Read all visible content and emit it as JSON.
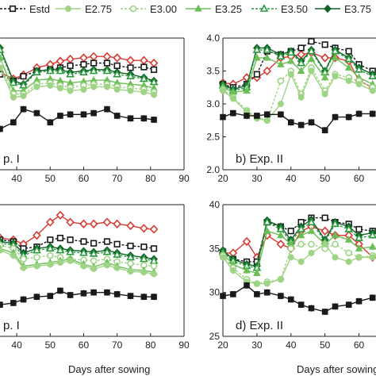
{
  "colors": {
    "Estd": "#1a1a1a",
    "E2.75": "#9fd486",
    "E3.00": "#9fd486",
    "E3.25": "#6cbf57",
    "E3.50": "#2a9a3f",
    "E3.75": "#12612a",
    "red": "#d63a32",
    "axis": "#222222"
  },
  "legend": {
    "items": [
      {
        "label": "Estd",
        "marker": "square-open",
        "color": "#1a1a1a",
        "dashed": true
      },
      {
        "label": "E2.75",
        "marker": "circle",
        "color": "#9fd486",
        "dashed": false
      },
      {
        "label": "E3.00",
        "marker": "circle-open",
        "color": "#9fd486",
        "dashed": true
      },
      {
        "label": "E3.25",
        "marker": "triangle",
        "color": "#6cbf57",
        "dashed": false
      },
      {
        "label": "E3.50",
        "marker": "triangle-open",
        "color": "#2a9a3f",
        "dashed": true
      },
      {
        "label": "E3.75",
        "marker": "diamond",
        "color": "#12612a",
        "dashed": false
      }
    ]
  },
  "xlabel_bottom": "Days after sowing",
  "chart_data": [
    {
      "id": "a",
      "type": "line",
      "label": "p. I",
      "xlim": [
        35,
        90
      ],
      "ylim": [
        2.0,
        4.0
      ],
      "xticks": [
        40,
        50,
        60,
        70,
        80,
        90
      ],
      "xtick_labels": [
        "40",
        "50",
        "60",
        "70",
        "80",
        "90"
      ],
      "yticks": [],
      "ytick_labels": [],
      "x": [
        35,
        39,
        42,
        46,
        50,
        53,
        56,
        60,
        63,
        67,
        70,
        74,
        78,
        81
      ],
      "series": [
        {
          "key": "red",
          "marker": "diamond-open",
          "values": [
            3.48,
            3.38,
            3.44,
            3.55,
            3.6,
            3.65,
            3.68,
            3.7,
            3.72,
            3.72,
            3.7,
            3.66,
            3.66,
            3.62
          ]
        },
        {
          "key": "Estd",
          "marker": "square-open",
          "values": [
            3.45,
            3.35,
            3.42,
            3.5,
            3.52,
            3.55,
            3.58,
            3.6,
            3.62,
            3.62,
            3.58,
            3.55,
            3.56,
            3.52
          ]
        },
        {
          "key": "E3.75",
          "marker": "diamond",
          "values": [
            3.85,
            3.35,
            3.3,
            3.5,
            3.52,
            3.52,
            3.48,
            3.5,
            3.52,
            3.52,
            3.48,
            3.45,
            3.4,
            3.35
          ]
        },
        {
          "key": "E3.50",
          "marker": "triangle-open",
          "values": [
            3.82,
            3.32,
            3.28,
            3.48,
            3.5,
            3.5,
            3.45,
            3.48,
            3.5,
            3.5,
            3.45,
            3.42,
            3.38,
            3.33
          ]
        },
        {
          "key": "E3.25",
          "marker": "triangle",
          "values": [
            3.7,
            3.2,
            3.2,
            3.36,
            3.38,
            3.35,
            3.32,
            3.34,
            3.36,
            3.36,
            3.32,
            3.3,
            3.28,
            3.24
          ]
        },
        {
          "key": "E3.00",
          "marker": "circle-open",
          "values": [
            3.6,
            3.15,
            3.15,
            3.3,
            3.32,
            3.28,
            3.25,
            3.28,
            3.3,
            3.3,
            3.26,
            3.24,
            3.22,
            3.18
          ]
        },
        {
          "key": "E2.75",
          "marker": "circle",
          "values": [
            3.55,
            3.1,
            3.12,
            3.26,
            3.28,
            3.24,
            3.2,
            3.22,
            3.26,
            3.26,
            3.22,
            3.2,
            3.18,
            3.14
          ]
        },
        {
          "key": "Estd",
          "marker": "square",
          "values": [
            2.62,
            2.72,
            2.92,
            2.86,
            2.72,
            2.82,
            2.84,
            2.84,
            2.86,
            2.92,
            2.82,
            2.78,
            2.78,
            2.76
          ]
        }
      ]
    },
    {
      "id": "b",
      "type": "line",
      "label": "b) Exp. II",
      "xlim": [
        20,
        65
      ],
      "ylim": [
        2.0,
        4.0
      ],
      "xticks": [
        20,
        30,
        40,
        50,
        60
      ],
      "xtick_labels": [
        "20",
        "30",
        "40",
        "50",
        "60"
      ],
      "yticks": [
        2.0,
        2.5,
        3.0,
        3.5,
        4.0
      ],
      "ytick_labels": [
        "2.0",
        "2.5",
        "3.0",
        "3.5",
        "4.0"
      ],
      "x": [
        20,
        23,
        27,
        30,
        33,
        37,
        40,
        43,
        46,
        50,
        53,
        57,
        60,
        64
      ],
      "series": [
        {
          "key": "red",
          "marker": "diamond-open",
          "values": [
            3.32,
            3.3,
            3.4,
            3.4,
            3.5,
            3.7,
            3.72,
            3.75,
            3.78,
            3.7,
            3.7,
            3.65,
            3.35,
            3.25
          ]
        },
        {
          "key": "Estd",
          "marker": "square-open",
          "values": [
            3.3,
            3.25,
            3.3,
            3.45,
            3.8,
            3.75,
            3.8,
            3.85,
            3.95,
            3.9,
            3.85,
            3.8,
            3.6,
            3.5
          ]
        },
        {
          "key": "E3.75",
          "marker": "diamond",
          "values": [
            3.3,
            3.22,
            3.28,
            3.85,
            3.85,
            3.75,
            3.8,
            3.65,
            3.82,
            3.5,
            3.82,
            3.7,
            3.55,
            3.45
          ]
        },
        {
          "key": "E3.50",
          "marker": "triangle-open",
          "values": [
            3.28,
            3.2,
            3.25,
            3.82,
            3.82,
            3.72,
            3.78,
            3.62,
            3.8,
            3.48,
            3.8,
            3.68,
            3.52,
            3.42
          ]
        },
        {
          "key": "E3.25",
          "marker": "triangle",
          "values": [
            3.25,
            3.18,
            3.2,
            3.7,
            3.7,
            3.6,
            3.65,
            3.5,
            3.68,
            3.4,
            3.7,
            3.55,
            3.4,
            3.3
          ]
        },
        {
          "key": "E3.00",
          "marker": "circle-open",
          "values": [
            3.22,
            3.1,
            2.9,
            2.8,
            2.75,
            3.35,
            3.5,
            3.15,
            3.55,
            3.2,
            3.45,
            3.4,
            3.35,
            3.25
          ]
        },
        {
          "key": "E2.75",
          "marker": "circle",
          "values": [
            3.2,
            3.08,
            2.88,
            2.78,
            2.75,
            3.0,
            3.45,
            3.1,
            3.5,
            3.15,
            3.42,
            3.35,
            3.3,
            3.2
          ]
        },
        {
          "key": "Estd",
          "marker": "square",
          "values": [
            2.8,
            2.86,
            2.82,
            2.82,
            2.84,
            2.84,
            2.72,
            2.68,
            2.72,
            2.6,
            2.8,
            2.8,
            2.85,
            2.85
          ]
        }
      ]
    },
    {
      "id": "c",
      "type": "line",
      "label": "p. I",
      "xlim": [
        35,
        90
      ],
      "ylim": [
        25,
        40
      ],
      "xticks": [
        40,
        50,
        60,
        70,
        80,
        90
      ],
      "xtick_labels": [
        "40",
        "50",
        "60",
        "70",
        "80",
        "90"
      ],
      "yticks": [],
      "ytick_labels": [],
      "x": [
        35,
        39,
        42,
        46,
        50,
        53,
        56,
        60,
        63,
        67,
        70,
        74,
        78,
        81
      ],
      "series": [
        {
          "key": "red",
          "marker": "diamond-open",
          "values": [
            36.2,
            36.0,
            35.5,
            36.5,
            38.0,
            38.8,
            38.0,
            37.8,
            37.8,
            38.0,
            37.8,
            37.6,
            37.3,
            37.2
          ]
        },
        {
          "key": "Estd",
          "marker": "square-open",
          "values": [
            36.0,
            35.8,
            35.0,
            35.2,
            36.0,
            36.2,
            36.0,
            35.8,
            35.6,
            35.8,
            35.5,
            35.3,
            35.2,
            35.0
          ]
        },
        {
          "key": "E3.75",
          "marker": "diamond",
          "values": [
            35.8,
            35.6,
            34.5,
            35.0,
            35.2,
            35.0,
            34.8,
            34.7,
            34.6,
            34.8,
            34.5,
            34.2,
            34.0,
            33.8
          ]
        },
        {
          "key": "E3.50",
          "marker": "triangle-open",
          "values": [
            35.6,
            35.4,
            34.2,
            34.8,
            35.0,
            34.8,
            34.6,
            34.5,
            34.4,
            34.6,
            34.3,
            34.0,
            33.8,
            33.6
          ]
        },
        {
          "key": "E3.00",
          "marker": "circle-open",
          "values": [
            35.4,
            35.0,
            33.8,
            34.0,
            34.2,
            34.0,
            33.8,
            33.7,
            33.6,
            33.8,
            33.5,
            33.3,
            33.1,
            33.0
          ]
        },
        {
          "key": "E3.25",
          "marker": "triangle",
          "values": [
            35.0,
            34.5,
            33.0,
            33.2,
            33.4,
            33.6,
            33.8,
            33.2,
            32.9,
            33.4,
            33.0,
            32.6,
            32.5,
            32.3
          ]
        },
        {
          "key": "E2.75",
          "marker": "circle",
          "values": [
            34.8,
            34.2,
            32.8,
            33.0,
            33.2,
            33.4,
            33.6,
            33.0,
            32.7,
            33.1,
            32.8,
            32.4,
            32.3,
            32.1
          ]
        },
        {
          "key": "Estd",
          "marker": "square",
          "values": [
            28.6,
            28.8,
            29.2,
            29.5,
            29.6,
            30.2,
            29.7,
            29.9,
            30.0,
            30.0,
            29.8,
            29.6,
            29.5,
            29.5
          ]
        }
      ]
    },
    {
      "id": "d",
      "type": "line",
      "label": "d) Exp. II",
      "xlim": [
        20,
        65
      ],
      "ylim": [
        25,
        40
      ],
      "xticks": [
        20,
        30,
        40,
        50,
        60
      ],
      "xtick_labels": [
        "20",
        "30",
        "40",
        "50",
        "60"
      ],
      "yticks": [
        25,
        30,
        35,
        40
      ],
      "ytick_labels": [
        "25",
        "30",
        "35",
        "40"
      ],
      "x": [
        20,
        23,
        27,
        30,
        33,
        37,
        40,
        43,
        46,
        50,
        53,
        57,
        60,
        64
      ],
      "series": [
        {
          "key": "red",
          "marker": "diamond-open",
          "values": [
            34.5,
            34.5,
            35.8,
            34.0,
            36.5,
            35.5,
            35.0,
            37.0,
            37.5,
            37.0,
            36.5,
            36.5,
            35.5,
            34.0
          ]
        },
        {
          "key": "Estd",
          "marker": "square-open",
          "values": [
            34.5,
            33.8,
            33.5,
            33.5,
            38.0,
            37.5,
            37.0,
            38.0,
            38.5,
            38.5,
            38.0,
            37.8,
            37.2,
            37.0
          ]
        },
        {
          "key": "E3.75",
          "marker": "diamond",
          "values": [
            34.8,
            33.8,
            33.2,
            33.0,
            38.2,
            37.5,
            36.0,
            37.5,
            38.3,
            36.0,
            38.0,
            37.5,
            36.5,
            36.8
          ]
        },
        {
          "key": "E3.50",
          "marker": "triangle-open",
          "values": [
            34.6,
            33.6,
            33.0,
            32.8,
            38.0,
            37.2,
            35.8,
            37.2,
            38.0,
            35.8,
            37.8,
            37.2,
            36.2,
            36.5
          ]
        },
        {
          "key": "E3.25",
          "marker": "triangle",
          "values": [
            34.4,
            33.2,
            32.5,
            32.2,
            37.0,
            36.5,
            35.5,
            36.5,
            37.0,
            35.5,
            36.5,
            36.0,
            35.0,
            35.2
          ]
        },
        {
          "key": "E3.00",
          "marker": "circle-open",
          "values": [
            34.2,
            32.8,
            31.5,
            31.0,
            31.2,
            31.5,
            35.0,
            35.5,
            35.5,
            35.0,
            35.5,
            34.5,
            34.0,
            34.2
          ]
        },
        {
          "key": "E2.75",
          "marker": "circle",
          "values": [
            34.0,
            32.5,
            31.2,
            31.0,
            31.0,
            31.5,
            34.0,
            33.5,
            34.5,
            35.5,
            34.0,
            33.5,
            34.0,
            34.0
          ]
        },
        {
          "key": "Estd",
          "marker": "square",
          "values": [
            29.6,
            29.8,
            30.8,
            29.8,
            30.0,
            29.6,
            29.2,
            28.6,
            28.2,
            27.8,
            28.4,
            28.6,
            29.0,
            29.4
          ]
        }
      ]
    }
  ]
}
